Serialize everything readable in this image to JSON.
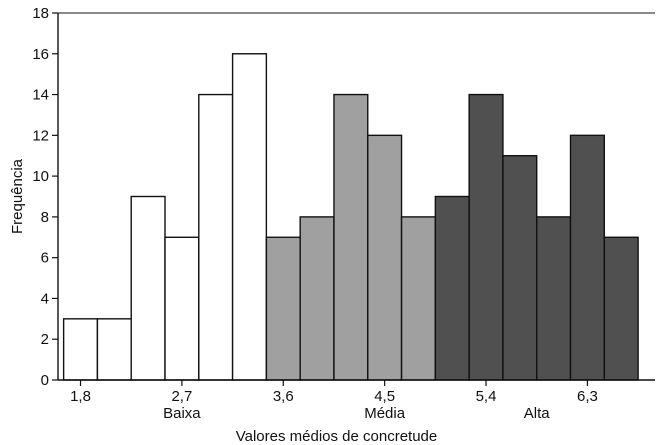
{
  "chart_data": {
    "type": "bar",
    "subtype": "histogram",
    "title": "",
    "xlabel": "Valores médios de concretude",
    "ylabel": "Frequência",
    "ylim": [
      0,
      18
    ],
    "yticks": [
      0,
      2,
      4,
      6,
      8,
      10,
      12,
      14,
      16,
      18
    ],
    "xticks": [
      {
        "value": 1.8,
        "label": "1,8"
      },
      {
        "value": 2.7,
        "label": "2,7"
      },
      {
        "value": 3.6,
        "label": "3,6"
      },
      {
        "value": 4.5,
        "label": "4,5"
      },
      {
        "value": 5.4,
        "label": "5,4"
      },
      {
        "value": 6.3,
        "label": "6,3"
      }
    ],
    "xlim": [
      1.6,
      6.9
    ],
    "bin_width": 0.3,
    "bins": [
      {
        "x": 1.8,
        "value": 3,
        "group": "Baixa"
      },
      {
        "x": 2.1,
        "value": 3,
        "group": "Baixa"
      },
      {
        "x": 2.4,
        "value": 9,
        "group": "Baixa"
      },
      {
        "x": 2.7,
        "value": 7,
        "group": "Baixa"
      },
      {
        "x": 3.0,
        "value": 14,
        "group": "Baixa"
      },
      {
        "x": 3.3,
        "value": 16,
        "group": "Baixa"
      },
      {
        "x": 3.6,
        "value": 7,
        "group": "Média"
      },
      {
        "x": 3.9,
        "value": 8,
        "group": "Média"
      },
      {
        "x": 4.2,
        "value": 14,
        "group": "Média"
      },
      {
        "x": 4.5,
        "value": 12,
        "group": "Média"
      },
      {
        "x": 4.8,
        "value": 8,
        "group": "Média"
      },
      {
        "x": 5.1,
        "value": 9,
        "group": "Alta"
      },
      {
        "x": 5.4,
        "value": 14,
        "group": "Alta"
      },
      {
        "x": 5.7,
        "value": 11,
        "group": "Alta"
      },
      {
        "x": 6.0,
        "value": 8,
        "group": "Alta"
      },
      {
        "x": 6.3,
        "value": 12,
        "group": "Alta"
      },
      {
        "x": 6.6,
        "value": 7,
        "group": "Alta"
      }
    ],
    "groups": [
      {
        "label": "Baixa",
        "color": "#ffffff",
        "label_x": 2.7
      },
      {
        "label": "Média",
        "color": "#a0a0a0",
        "label_x": 4.5
      },
      {
        "label": "Alta",
        "color": "#505050",
        "label_x": 5.85
      }
    ],
    "bar_edge_color": "#111111",
    "grid": false,
    "legend": "none"
  }
}
